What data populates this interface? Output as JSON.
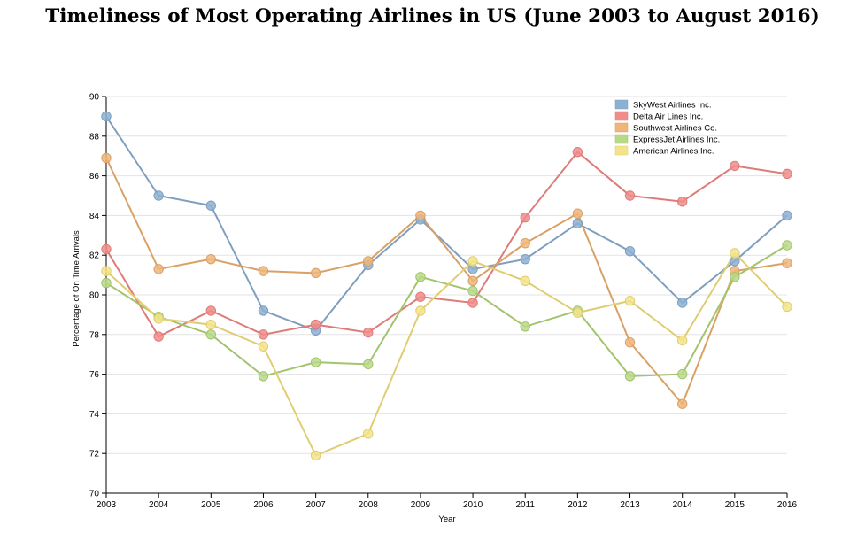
{
  "chart_data": {
    "type": "line",
    "title": "Timeliness of Most Operating Airlines in US (June 2003 to August 2016)",
    "xlabel": "Year",
    "ylabel": "Percentage of On Time Arrivals",
    "ylim": [
      70,
      90
    ],
    "yticks": [
      70,
      72,
      74,
      76,
      78,
      80,
      82,
      84,
      86,
      88,
      90
    ],
    "x": [
      2003,
      2004,
      2005,
      2006,
      2007,
      2008,
      2009,
      2010,
      2011,
      2012,
      2013,
      2014,
      2015,
      2016
    ],
    "grid": "horizontal",
    "legend_position": "top-right",
    "series": [
      {
        "name": "SkyWest Airlines Inc.",
        "color": "#7f9fbf",
        "fill": "#8cb0d2",
        "values": [
          89.0,
          85.0,
          84.5,
          79.2,
          78.2,
          81.5,
          83.8,
          81.3,
          81.8,
          83.6,
          82.2,
          79.6,
          81.7,
          84.0
        ]
      },
      {
        "name": "Delta Air Lines Inc.",
        "color": "#de7b78",
        "fill": "#f08c89",
        "values": [
          82.3,
          77.9,
          79.2,
          78.0,
          78.5,
          78.1,
          79.9,
          79.6,
          83.9,
          87.2,
          85.0,
          84.7,
          86.5,
          86.1
        ]
      },
      {
        "name": "Southwest Airlines Co.",
        "color": "#d9a166",
        "fill": "#f0b57a",
        "values": [
          86.9,
          81.3,
          81.8,
          81.2,
          81.1,
          81.7,
          84.0,
          80.7,
          82.6,
          84.1,
          77.6,
          74.5,
          81.2,
          81.6
        ]
      },
      {
        "name": "ExpressJet Airlines Inc.",
        "color": "#a3c46c",
        "fill": "#b8d98a",
        "values": [
          80.6,
          78.9,
          78.0,
          75.9,
          76.6,
          76.5,
          80.9,
          80.2,
          78.4,
          79.2,
          75.9,
          76.0,
          80.9,
          82.5
        ]
      },
      {
        "name": "American Airlines Inc.",
        "color": "#e0cd72",
        "fill": "#f3e48a",
        "values": [
          81.2,
          78.8,
          78.5,
          77.4,
          71.9,
          73.0,
          79.2,
          81.7,
          80.7,
          79.1,
          79.7,
          77.7,
          82.1,
          79.4
        ]
      }
    ]
  }
}
